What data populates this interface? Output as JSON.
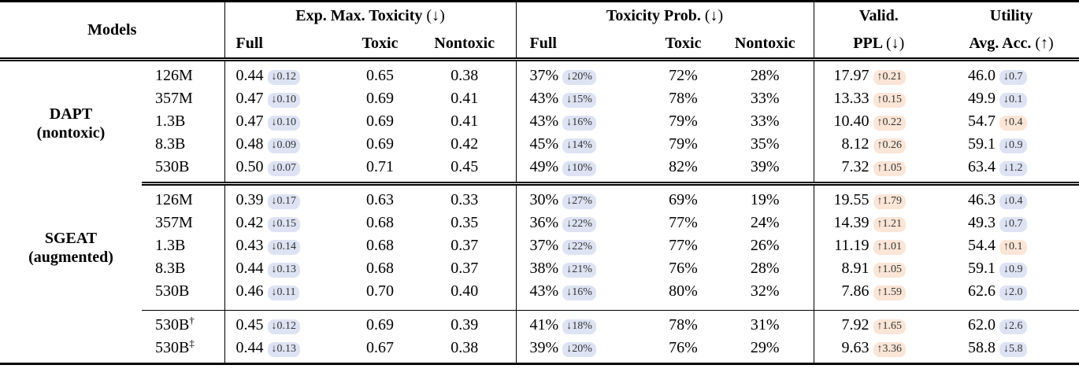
{
  "colors": {
    "badge_blue": "#dde3f3",
    "badge_orange": "#fbe5d6",
    "rule": "#000000",
    "background": "#ffffff"
  },
  "table": {
    "header": {
      "models": "Models",
      "emt": {
        "title": "Exp. Max. Toxicity",
        "arrow": "(↓)",
        "subs": [
          "Full",
          "Toxic",
          "Nontoxic"
        ]
      },
      "prob": {
        "title": "Toxicity Prob.",
        "arrow": "(↓)",
        "subs": [
          "Full",
          "Toxic",
          "Nontoxic"
        ]
      },
      "valid": {
        "title": "Valid.",
        "sub": "PPL",
        "sub_arrow": "(↓)"
      },
      "utility": {
        "title": "Utility",
        "sub": "Avg. Acc.",
        "sub_arrow": "(↑)"
      }
    },
    "sections": [
      {
        "id": "dapt",
        "group": "DAPT",
        "group_sub": "(nontoxic)",
        "rows": [
          {
            "size": "126M",
            "emt_full": "0.44",
            "emt_full_d": "↓0.12",
            "emt_toxic": "0.65",
            "emt_nontoxic": "0.38",
            "prob_full": "37%",
            "prob_full_d": "↓20%",
            "prob_toxic": "72%",
            "prob_nontoxic": "28%",
            "ppl": "17.97",
            "ppl_d": "↑0.21",
            "acc": "46.0",
            "acc_d": "↓0.7"
          },
          {
            "size": "357M",
            "emt_full": "0.47",
            "emt_full_d": "↓0.10",
            "emt_toxic": "0.69",
            "emt_nontoxic": "0.41",
            "prob_full": "43%",
            "prob_full_d": "↓15%",
            "prob_toxic": "78%",
            "prob_nontoxic": "33%",
            "ppl": "13.33",
            "ppl_d": "↑0.15",
            "acc": "49.9",
            "acc_d": "↓0.1"
          },
          {
            "size": "1.3B",
            "emt_full": "0.47",
            "emt_full_d": "↓0.10",
            "emt_toxic": "0.69",
            "emt_nontoxic": "0.41",
            "prob_full": "43%",
            "prob_full_d": "↓16%",
            "prob_toxic": "79%",
            "prob_nontoxic": "33%",
            "ppl": "10.40",
            "ppl_d": "↑0.22",
            "acc": "54.7",
            "acc_d": "↑0.4"
          },
          {
            "size": "8.3B",
            "emt_full": "0.48",
            "emt_full_d": "↓0.09",
            "emt_toxic": "0.69",
            "emt_nontoxic": "0.42",
            "prob_full": "45%",
            "prob_full_d": "↓14%",
            "prob_toxic": "79%",
            "prob_nontoxic": "35%",
            "ppl": "8.12",
            "ppl_d": "↑0.26",
            "acc": "59.1",
            "acc_d": "↓0.9"
          },
          {
            "size": "530B",
            "emt_full": "0.50",
            "emt_full_d": "↓0.07",
            "emt_toxic": "0.71",
            "emt_nontoxic": "0.45",
            "prob_full": "49%",
            "prob_full_d": "↓10%",
            "prob_toxic": "82%",
            "prob_nontoxic": "39%",
            "ppl": "7.32",
            "ppl_d": "↑1.05",
            "acc": "63.4",
            "acc_d": "↓1.2"
          }
        ]
      },
      {
        "id": "sgeat",
        "group": "SGEAT",
        "group_sub": "(augmented)",
        "rows": [
          {
            "size": "126M",
            "emt_full": "0.39",
            "emt_full_d": "↓0.17",
            "emt_toxic": "0.63",
            "emt_nontoxic": "0.33",
            "prob_full": "30%",
            "prob_full_d": "↓27%",
            "prob_toxic": "69%",
            "prob_nontoxic": "19%",
            "ppl": "19.55",
            "ppl_d": "↑1.79",
            "acc": "46.3",
            "acc_d": "↓0.4"
          },
          {
            "size": "357M",
            "emt_full": "0.42",
            "emt_full_d": "↓0.15",
            "emt_toxic": "0.68",
            "emt_nontoxic": "0.35",
            "prob_full": "36%",
            "prob_full_d": "↓22%",
            "prob_toxic": "77%",
            "prob_nontoxic": "24%",
            "ppl": "14.39",
            "ppl_d": "↑1.21",
            "acc": "49.3",
            "acc_d": "↓0.7"
          },
          {
            "size": "1.3B",
            "emt_full": "0.43",
            "emt_full_d": "↓0.14",
            "emt_toxic": "0.68",
            "emt_nontoxic": "0.37",
            "prob_full": "37%",
            "prob_full_d": "↓22%",
            "prob_toxic": "77%",
            "prob_nontoxic": "26%",
            "ppl": "11.19",
            "ppl_d": "↑1.01",
            "acc": "54.4",
            "acc_d": "↑0.1"
          },
          {
            "size": "8.3B",
            "emt_full": "0.44",
            "emt_full_d": "↓0.13",
            "emt_toxic": "0.68",
            "emt_nontoxic": "0.37",
            "prob_full": "38%",
            "prob_full_d": "↓21%",
            "prob_toxic": "76%",
            "prob_nontoxic": "28%",
            "ppl": "8.91",
            "ppl_d": "↑1.05",
            "acc": "59.1",
            "acc_d": "↓0.9"
          },
          {
            "size": "530B",
            "emt_full": "0.46",
            "emt_full_d": "↓0.11",
            "emt_toxic": "0.70",
            "emt_nontoxic": "0.40",
            "prob_full": "43%",
            "prob_full_d": "↓16%",
            "prob_toxic": "80%",
            "prob_nontoxic": "32%",
            "ppl": "7.86",
            "ppl_d": "↑1.59",
            "acc": "62.6",
            "acc_d": "↓2.0"
          }
        ]
      },
      {
        "id": "extra",
        "group": "",
        "group_sub": "",
        "rows": [
          {
            "size": "530B",
            "sup": "†",
            "emt_full": "0.45",
            "emt_full_d": "↓0.12",
            "emt_toxic": "0.69",
            "emt_nontoxic": "0.39",
            "prob_full": "41%",
            "prob_full_d": "↓18%",
            "prob_toxic": "78%",
            "prob_nontoxic": "31%",
            "ppl": "7.92",
            "ppl_d": "↑1.65",
            "acc": "62.0",
            "acc_d": "↓2.6"
          },
          {
            "size": "530B",
            "sup": "‡",
            "emt_full": "0.44",
            "emt_full_d": "↓0.13",
            "emt_toxic": "0.67",
            "emt_nontoxic": "0.38",
            "prob_full": "39%",
            "prob_full_d": "↓20%",
            "prob_toxic": "76%",
            "prob_nontoxic": "29%",
            "ppl": "9.63",
            "ppl_d": "↑3.36",
            "acc": "58.8",
            "acc_d": "↓5.8"
          }
        ]
      }
    ]
  }
}
